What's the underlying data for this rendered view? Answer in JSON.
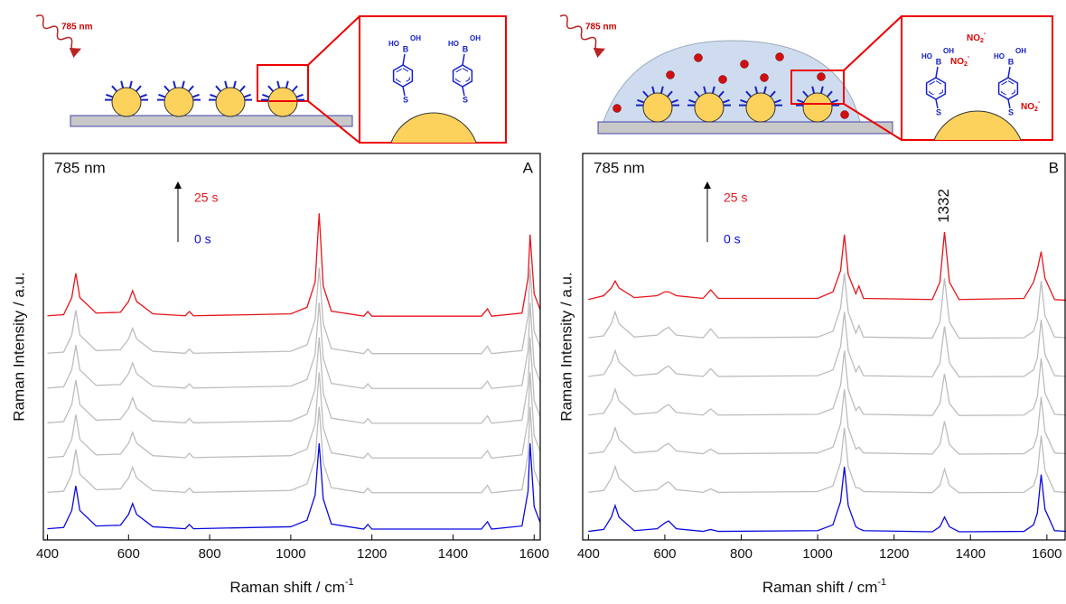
{
  "chart_data": [
    {
      "type": "line",
      "title": "785 nm",
      "panel_label": "A",
      "x_label": "Raman shift / cm",
      "x_label_sup": "-1",
      "y_label": "Raman Intensity / a.u.",
      "xlim": [
        390,
        1615
      ],
      "ylim": [
        0,
        100
      ],
      "xticks": [
        400,
        600,
        800,
        1000,
        1200,
        1400,
        1600
      ],
      "x": [
        400,
        440,
        460,
        470,
        480,
        520,
        580,
        600,
        610,
        620,
        660,
        740,
        750,
        760,
        1000,
        1040,
        1060,
        1070,
        1080,
        1100,
        1180,
        1190,
        1200,
        1470,
        1485,
        1495,
        1570,
        1585,
        1590,
        1600,
        1620,
        1700
      ],
      "series": [
        {
          "color": "#bdbdbd",
          "values": [
            12.3,
            12.6,
            17,
            23.4,
            17,
            13,
            13.2,
            16,
            18.8,
            16,
            12.8,
            12.3,
            13.4,
            12.3,
            12.8,
            14.5,
            21,
            34.4,
            20,
            13.5,
            12.2,
            13.4,
            12.2,
            12.2,
            14.1,
            12.2,
            13,
            22,
            34.4,
            18,
            12.5,
            12
          ]
        },
        {
          "color": "#bdbdbd",
          "values": [
            21.3,
            21.6,
            26,
            32.4,
            26,
            22,
            22.2,
            25,
            27.8,
            25,
            21.8,
            21.3,
            22.4,
            21.3,
            21.8,
            23.5,
            30,
            43.4,
            29,
            22.5,
            21.2,
            22.4,
            21.2,
            21.2,
            23.1,
            21.2,
            22,
            31,
            43.4,
            27,
            21.5,
            21
          ]
        },
        {
          "color": "#bdbdbd",
          "values": [
            30.3,
            30.6,
            35,
            41.4,
            35,
            31,
            31.2,
            34,
            36.8,
            34,
            30.8,
            30.3,
            31.4,
            30.3,
            30.8,
            32.5,
            39,
            52.4,
            38,
            31.5,
            30.2,
            31.4,
            30.2,
            30.2,
            32.1,
            30.2,
            31,
            40,
            52.4,
            36,
            30.5,
            30
          ]
        },
        {
          "color": "#bdbdbd",
          "values": [
            39.3,
            39.6,
            44,
            50.4,
            44,
            40,
            40.2,
            43,
            45.8,
            43,
            39.8,
            39.3,
            40.4,
            39.3,
            39.8,
            41.5,
            48,
            61.4,
            47,
            40.5,
            39.2,
            40.4,
            39.2,
            39.2,
            41.1,
            39.2,
            40,
            49,
            61.4,
            45,
            39.5,
            39
          ]
        },
        {
          "color": "#bdbdbd",
          "values": [
            48.3,
            48.6,
            53,
            59.4,
            53,
            49,
            49.2,
            52,
            54.8,
            52,
            48.8,
            48.3,
            49.4,
            48.3,
            48.8,
            50.5,
            57,
            70.4,
            56,
            49.5,
            48.2,
            49.4,
            48.2,
            48.2,
            50.1,
            48.2,
            49,
            58,
            70.4,
            54,
            48.5,
            48
          ]
        },
        {
          "name": "0 s",
          "color": "#0a0adf",
          "values": [
            2.9,
            3.2,
            7.6,
            14,
            7.6,
            3.6,
            3.8,
            6.6,
            9.4,
            6.6,
            3.4,
            2.9,
            4,
            2.9,
            3.4,
            5.1,
            11.6,
            25,
            10.6,
            4.1,
            2.8,
            4,
            2.8,
            2.8,
            4.7,
            2.8,
            3.6,
            12.6,
            25,
            8.6,
            3.1,
            2.6
          ]
        },
        {
          "name": "25 s",
          "color": "#e8141c",
          "values": [
            58,
            58.3,
            62.7,
            69,
            62.7,
            58.7,
            58.9,
            61.7,
            64.5,
            61.7,
            58.5,
            58,
            59.1,
            58,
            58.5,
            60.2,
            66.7,
            84.5,
            65.7,
            59.2,
            57.9,
            59.1,
            57.9,
            57.9,
            59.8,
            57.9,
            58.7,
            67.7,
            79,
            63.7,
            58.2,
            57.7
          ]
        }
      ]
    },
    {
      "type": "line",
      "title": "785 nm",
      "panel_label": "B",
      "annotation": 1332,
      "x_label": "Raman shift / cm",
      "x_label_sup": "-1",
      "y_label": "Raman Intensity / a.u.",
      "xlim": [
        385,
        1650
      ],
      "ylim": [
        0,
        100
      ],
      "xticks": [
        400,
        600,
        800,
        1000,
        1200,
        1400,
        1600
      ],
      "x": [
        400,
        440,
        460,
        470,
        480,
        520,
        580,
        600,
        610,
        630,
        700,
        720,
        740,
        1000,
        1040,
        1060,
        1070,
        1080,
        1100,
        1108,
        1120,
        1300,
        1320,
        1332,
        1345,
        1370,
        1540,
        1565,
        1575,
        1585,
        1595,
        1620,
        1700
      ],
      "series": [
        {
          "color": "#bdbdbd",
          "values": [
            12.3,
            12.8,
            16,
            19,
            16,
            12.5,
            13,
            14.5,
            15,
            13,
            12.3,
            13.2,
            12.3,
            12.5,
            14,
            20,
            29,
            19,
            13.5,
            13.5,
            12.5,
            12.2,
            14.1,
            18.3,
            14.1,
            12.2,
            12.3,
            14,
            17,
            27,
            18,
            12.5,
            12
          ]
        },
        {
          "color": "#bdbdbd",
          "values": [
            22.3,
            22.8,
            26,
            29,
            26,
            22.5,
            23,
            24.5,
            25,
            23,
            22.3,
            23.5,
            22.3,
            22.5,
            24,
            30,
            39,
            29,
            23.5,
            24,
            22.5,
            22.2,
            24.7,
            30.7,
            24.7,
            22.2,
            22.3,
            24,
            27,
            37,
            28,
            22.5,
            22
          ]
        },
        {
          "color": "#bdbdbd",
          "values": [
            32.3,
            32.8,
            36,
            39,
            36,
            32.5,
            33,
            34.5,
            35,
            33,
            32.3,
            33.9,
            32.3,
            32.5,
            34,
            40,
            49,
            39,
            33.5,
            34.5,
            32.5,
            32.2,
            35.3,
            43,
            35.3,
            32.2,
            32.3,
            34,
            37,
            47,
            38,
            32.5,
            32
          ]
        },
        {
          "color": "#bdbdbd",
          "values": [
            42.3,
            42.8,
            46,
            49,
            46,
            42.5,
            43,
            44.5,
            45,
            43,
            42.3,
            44.3,
            42.3,
            42.5,
            44,
            50,
            59,
            49,
            43.5,
            45,
            42.5,
            42.2,
            45.8,
            55.3,
            45.8,
            42.2,
            42.3,
            44,
            47,
            57,
            48,
            42.5,
            42
          ]
        },
        {
          "color": "#bdbdbd",
          "values": [
            52.3,
            52.8,
            56,
            59,
            56,
            52.5,
            53,
            54.5,
            55,
            53,
            52.3,
            54.6,
            52.3,
            52.5,
            54,
            60,
            69,
            59,
            53.5,
            55.5,
            52.5,
            52.2,
            56.4,
            67.7,
            56.4,
            52.2,
            52.3,
            54,
            57,
            67,
            58,
            52.5,
            52
          ]
        },
        {
          "name": "0 s",
          "color": "#0a0adf",
          "values": [
            2.2,
            2.7,
            5.9,
            8.9,
            5.9,
            2.4,
            2.9,
            4.4,
            4.9,
            2.9,
            2.2,
            2.7,
            2.2,
            2.4,
            3.9,
            9.9,
            18.9,
            8.9,
            3.4,
            2.9,
            2.4,
            2.1,
            3.4,
            5.9,
            3.4,
            2.1,
            2.2,
            3.9,
            6.9,
            16.9,
            7.9,
            2.4,
            1.9
          ]
        },
        {
          "name": "25 s",
          "color": "#e8141c",
          "values": [
            62.2,
            63.2,
            65.2,
            67,
            65.2,
            62.7,
            63.2,
            64.2,
            64.2,
            63.2,
            62.5,
            64.7,
            62.5,
            62.5,
            64.2,
            69.7,
            79,
            68.7,
            63.7,
            65.7,
            62.5,
            62.2,
            66.7,
            79.7,
            66.7,
            62.2,
            62.5,
            66.7,
            70,
            74.6,
            67.7,
            62.2,
            61.7
          ]
        }
      ]
    }
  ],
  "schematics": [
    {
      "laser": "785 nm",
      "molecule": {
        "boron": "B",
        "hydroxyl_left": "HO",
        "hydroxyl_right": "OH",
        "sulfur": "S"
      }
    },
    {
      "laser": "785 nm",
      "molecule": {
        "boron": "B",
        "hydroxyl_left": "HO",
        "hydroxyl_right": "OH",
        "sulfur": "S"
      },
      "ion": {
        "formula": "NO",
        "subscript": "2",
        "charge": "-"
      }
    }
  ]
}
